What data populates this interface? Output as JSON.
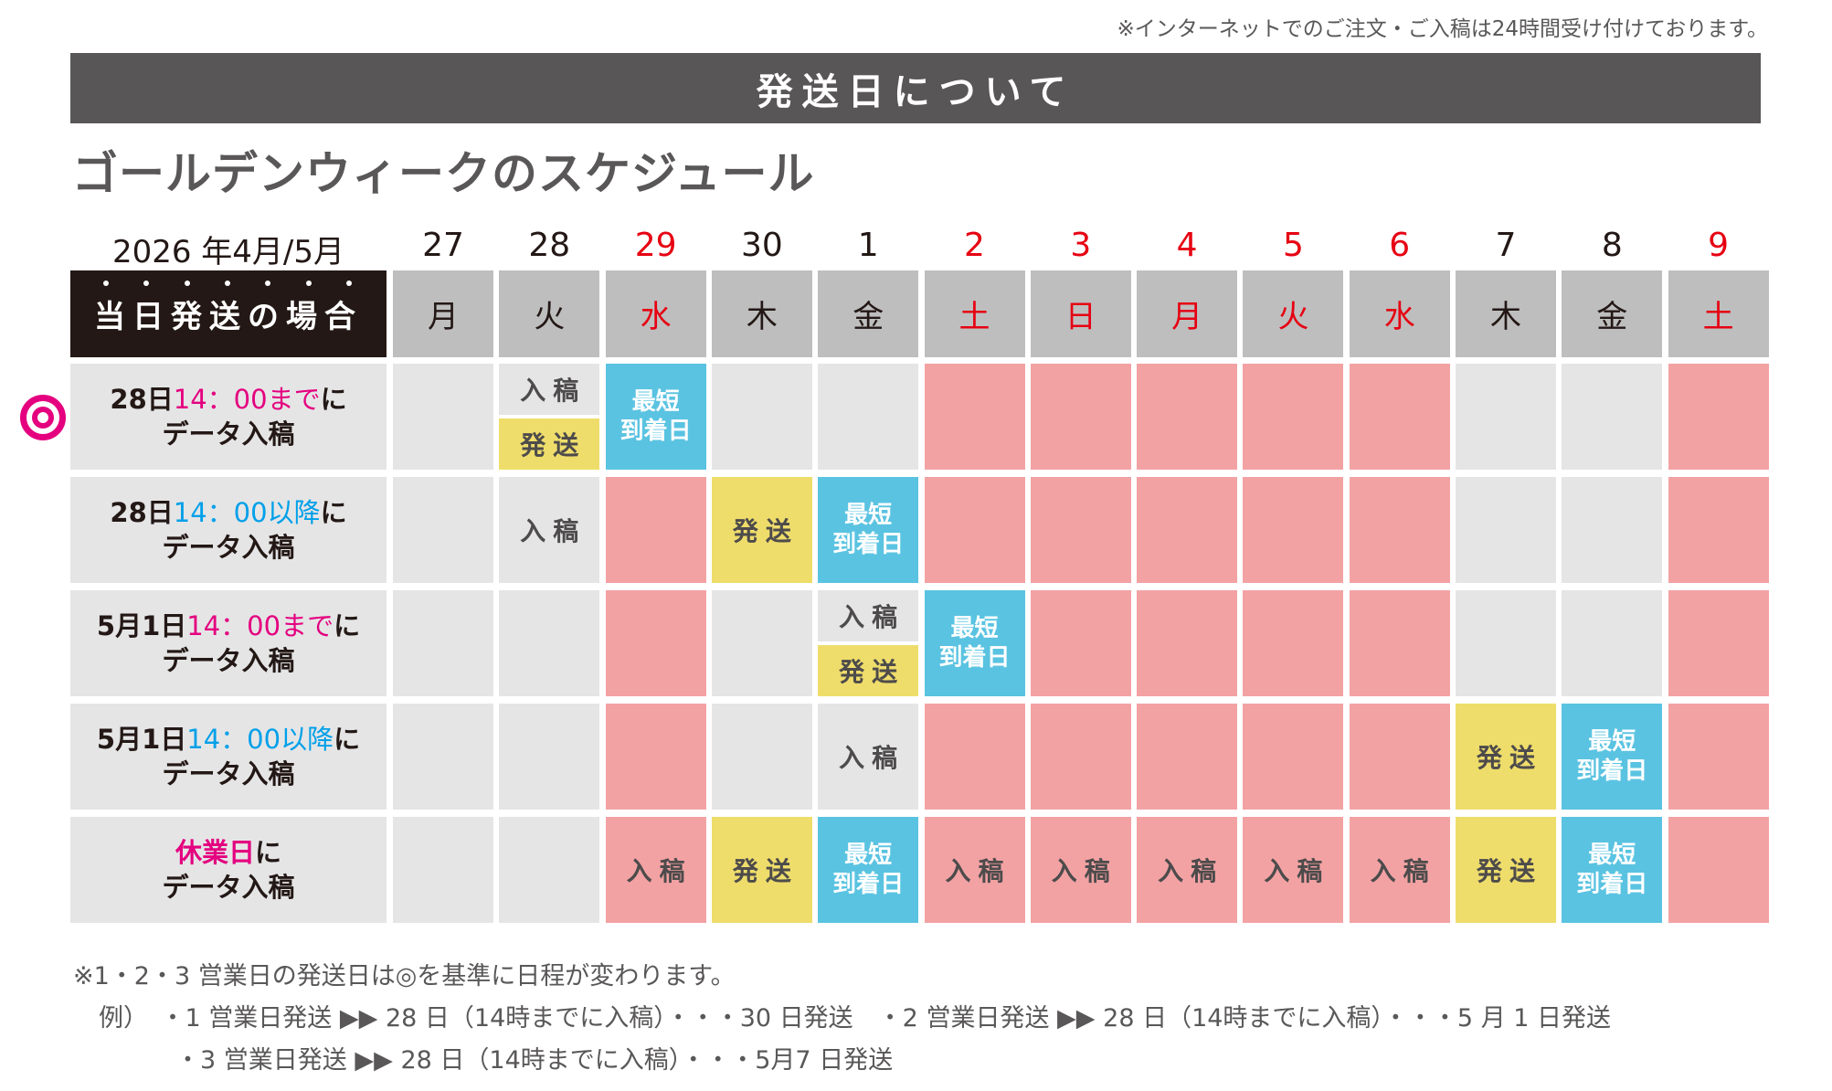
{
  "top_note": "※インターネットでのご注文・ご入稿は24時間受け付けております。",
  "banner": {
    "title": "発送日について"
  },
  "subtitle": "ゴールデンウィークのスケジュール",
  "calendar": {
    "period_label": "2026 年4月/5月",
    "row_header_label": "当日発送の場合",
    "days": [
      {
        "date": "27",
        "dow": "月",
        "holiday": false
      },
      {
        "date": "28",
        "dow": "火",
        "holiday": false
      },
      {
        "date": "29",
        "dow": "水",
        "holiday": true
      },
      {
        "date": "30",
        "dow": "木",
        "holiday": false
      },
      {
        "date": "1",
        "dow": "金",
        "holiday": false
      },
      {
        "date": "2",
        "dow": "土",
        "holiday": true
      },
      {
        "date": "3",
        "dow": "日",
        "holiday": true
      },
      {
        "date": "4",
        "dow": "月",
        "holiday": true
      },
      {
        "date": "5",
        "dow": "火",
        "holiday": true
      },
      {
        "date": "6",
        "dow": "水",
        "holiday": true
      },
      {
        "date": "7",
        "dow": "木",
        "holiday": false
      },
      {
        "date": "8",
        "dow": "金",
        "holiday": false
      },
      {
        "date": "9",
        "dow": "土",
        "holiday": true
      }
    ],
    "labels": {
      "submit": "入稿",
      "ship": "発送",
      "arrival_line1": "最短",
      "arrival_line2": "到着日"
    },
    "rows": [
      {
        "marker": "◎",
        "label_prefix": "28日",
        "label_highlight": "14：00まで",
        "highlight_color": "pink",
        "label_suffix": "に",
        "label_line2": "データ入稿",
        "cells": [
          "gray",
          "split",
          "blue",
          "gray",
          "gray",
          "pink",
          "pink",
          "pink",
          "pink",
          "pink",
          "gray",
          "gray",
          "pink"
        ],
        "cell_text": [
          "",
          "submit/ship",
          "arrival",
          "",
          "",
          "",
          "",
          "",
          "",
          "",
          "",
          "",
          ""
        ]
      },
      {
        "label_prefix": "28日",
        "label_highlight": "14：00以降",
        "highlight_color": "blue",
        "label_suffix": "に",
        "label_line2": "データ入稿",
        "cells": [
          "gray",
          "gray",
          "pink",
          "yellow",
          "blue",
          "pink",
          "pink",
          "pink",
          "pink",
          "pink",
          "gray",
          "gray",
          "pink"
        ],
        "cell_text": [
          "",
          "submit",
          "",
          "ship",
          "arrival",
          "",
          "",
          "",
          "",
          "",
          "",
          "",
          ""
        ]
      },
      {
        "label_prefix": "5月1日",
        "label_highlight": "14：00まで",
        "highlight_color": "pink",
        "label_suffix": "に",
        "label_line2": "データ入稿",
        "cells": [
          "gray",
          "gray",
          "pink",
          "gray",
          "split",
          "blue",
          "pink",
          "pink",
          "pink",
          "pink",
          "gray",
          "gray",
          "pink"
        ],
        "cell_text": [
          "",
          "",
          "",
          "",
          "submit/ship",
          "arrival",
          "",
          "",
          "",
          "",
          "",
          "",
          ""
        ]
      },
      {
        "label_prefix": "5月1日",
        "label_highlight": "14：00以降",
        "highlight_color": "blue",
        "label_suffix": "に",
        "label_line2": "データ入稿",
        "cells": [
          "gray",
          "gray",
          "pink",
          "gray",
          "gray",
          "pink",
          "pink",
          "pink",
          "pink",
          "pink",
          "yellow",
          "blue",
          "pink"
        ],
        "cell_text": [
          "",
          "",
          "",
          "",
          "submit",
          "",
          "",
          "",
          "",
          "",
          "ship",
          "arrival",
          ""
        ]
      },
      {
        "label_prefix": "",
        "label_highlight": "休業日",
        "highlight_color": "pink-bold",
        "label_suffix": "に",
        "label_line2": "データ入稿",
        "cells": [
          "gray",
          "gray",
          "pink",
          "yellow",
          "blue",
          "pink",
          "pink",
          "pink",
          "pink",
          "pink",
          "yellow",
          "blue",
          "pink"
        ],
        "cell_text": [
          "",
          "",
          "submit",
          "ship",
          "arrival",
          "submit",
          "submit",
          "submit",
          "submit",
          "submit",
          "ship",
          "arrival",
          ""
        ]
      }
    ]
  },
  "footnotes": {
    "line1": "※1・2・3 営業日の発送日は◎を基準に日程が変わります。",
    "line2": "例）　・1 営業日発送 ▶▶ 28 日（14時までに入稿）・・・30 日発送　・2 営業日発送 ▶▶ 28 日（14時までに入稿）・・・5 月 1 日発送",
    "line3": "・3 営業日発送 ▶▶ 28 日（14時までに入稿）・・・5月7 日発送"
  },
  "colors": {
    "banner_bg": "#595657",
    "label_head_bg": "#231815",
    "dow_bg": "#bebebe",
    "cell_gray": "#e5e5e6",
    "cell_pink": "#f3a2a4",
    "cell_yellow": "#efdd6b",
    "cell_blue": "#5ac3e1",
    "holiday_red": "#e60012",
    "highlight_pink": "#e4007f",
    "highlight_blue": "#00a0e9"
  }
}
